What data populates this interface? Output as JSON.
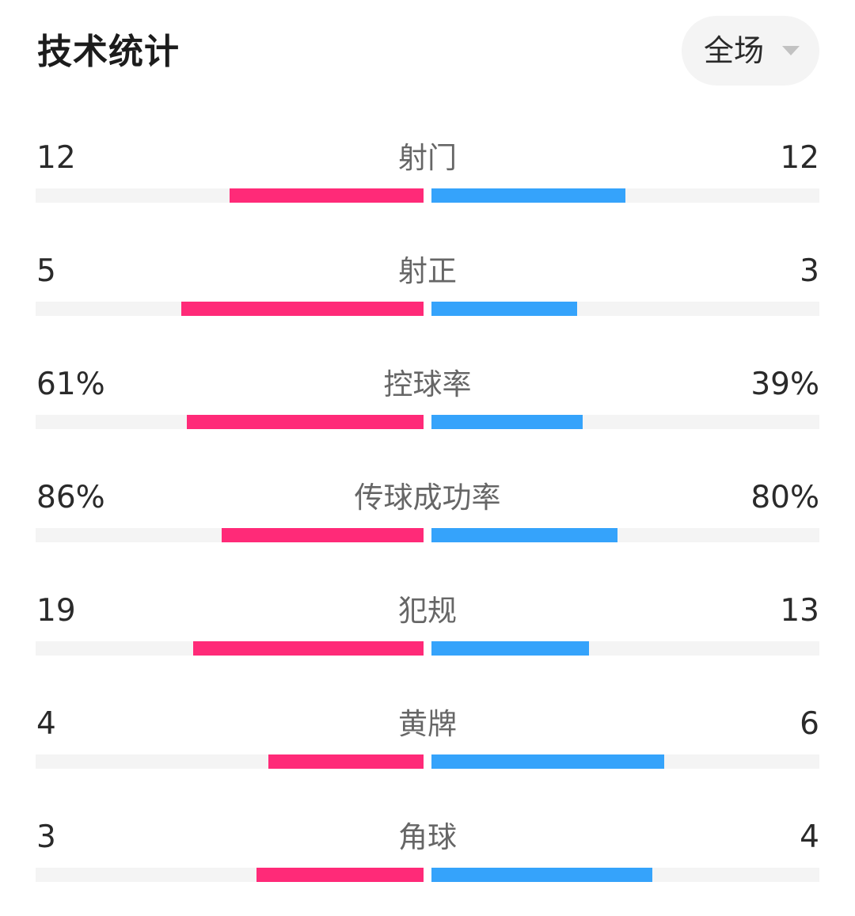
{
  "header": {
    "title": "技术统计",
    "period": "全场"
  },
  "colors": {
    "home": "#ff2a78",
    "away": "#35a3fb",
    "track": "#f4f4f4"
  },
  "stats": [
    {
      "label": "射门",
      "home": "12",
      "away": "12",
      "home_share": 0.5,
      "away_share": 0.5
    },
    {
      "label": "射正",
      "home": "5",
      "away": "3",
      "home_share": 0.625,
      "away_share": 0.375
    },
    {
      "label": "控球率",
      "home": "61%",
      "away": "39%",
      "home_share": 0.61,
      "away_share": 0.39
    },
    {
      "label": "传球成功率",
      "home": "86%",
      "away": "80%",
      "home_share": 0.52,
      "away_share": 0.48
    },
    {
      "label": "犯规",
      "home": "19",
      "away": "13",
      "home_share": 0.594,
      "away_share": 0.406
    },
    {
      "label": "黄牌",
      "home": "4",
      "away": "6",
      "home_share": 0.4,
      "away_share": 0.6
    },
    {
      "label": "角球",
      "home": "3",
      "away": "4",
      "home_share": 0.43,
      "away_share": 0.57
    }
  ]
}
